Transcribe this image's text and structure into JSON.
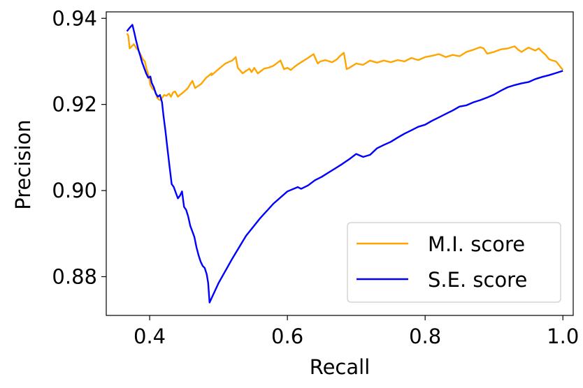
{
  "chart_data": {
    "type": "line",
    "title": "",
    "xlabel": "Recall",
    "ylabel": "Precision",
    "xlim": [
      0.337,
      1.015
    ],
    "ylim": [
      0.871,
      0.9415
    ],
    "x_ticks": [
      0.4,
      0.6,
      0.8,
      1.0
    ],
    "x_tick_labels": [
      "0.4",
      "0.6",
      "0.8",
      "1.0"
    ],
    "y_ticks": [
      0.88,
      0.9,
      0.92,
      0.94
    ],
    "y_tick_labels": [
      "0.88",
      "0.90",
      "0.92",
      "0.94"
    ],
    "grid": false,
    "legend": {
      "position": "bottom-right"
    },
    "series": [
      {
        "name": "M.I. score",
        "color": "#ffa500",
        "x": [
          0.367,
          0.369,
          0.371,
          0.374,
          0.377,
          0.381,
          0.384,
          0.387,
          0.39,
          0.393,
          0.396,
          0.399,
          0.401,
          0.403,
          0.405,
          0.408,
          0.411,
          0.413,
          0.415,
          0.418,
          0.421,
          0.424,
          0.428,
          0.431,
          0.434,
          0.437,
          0.441,
          0.444,
          0.448,
          0.455,
          0.462,
          0.466,
          0.475,
          0.482,
          0.49,
          0.49,
          0.5,
          0.51,
          0.52,
          0.525,
          0.528,
          0.535,
          0.54,
          0.545,
          0.548,
          0.552,
          0.557,
          0.562,
          0.566,
          0.572,
          0.58,
          0.59,
          0.595,
          0.6,
          0.605,
          0.61,
          0.615,
          0.62,
          0.63,
          0.638,
          0.644,
          0.648,
          0.655,
          0.665,
          0.672,
          0.676,
          0.682,
          0.686,
          0.69,
          0.7,
          0.71,
          0.72,
          0.73,
          0.74,
          0.75,
          0.76,
          0.77,
          0.78,
          0.79,
          0.8,
          0.81,
          0.82,
          0.83,
          0.84,
          0.85,
          0.86,
          0.87,
          0.88,
          0.885,
          0.89,
          0.9,
          0.91,
          0.92,
          0.93,
          0.935,
          0.94,
          0.95,
          0.96,
          0.965,
          0.97,
          0.975,
          0.98,
          0.985,
          0.99,
          0.995,
          1.0
        ],
        "y": [
          0.9365,
          0.936,
          0.933,
          0.9335,
          0.934,
          0.933,
          0.9325,
          0.9315,
          0.9305,
          0.93,
          0.928,
          0.9265,
          0.9245,
          0.924,
          0.9235,
          0.9232,
          0.9215,
          0.9212,
          0.921,
          0.9215,
          0.9222,
          0.922,
          0.9225,
          0.9218,
          0.9228,
          0.923,
          0.9218,
          0.9222,
          0.9227,
          0.9237,
          0.9255,
          0.9238,
          0.9248,
          0.9262,
          0.9272,
          0.9268,
          0.9282,
          0.9295,
          0.9302,
          0.931,
          0.9285,
          0.9272,
          0.9278,
          0.9283,
          0.9275,
          0.9285,
          0.9272,
          0.9278,
          0.9283,
          0.9285,
          0.929,
          0.9302,
          0.9282,
          0.9285,
          0.928,
          0.9287,
          0.9293,
          0.9298,
          0.9308,
          0.9317,
          0.9295,
          0.93,
          0.9303,
          0.9298,
          0.9305,
          0.9312,
          0.932,
          0.9282,
          0.9285,
          0.9295,
          0.9292,
          0.9302,
          0.9297,
          0.9302,
          0.9298,
          0.9303,
          0.93,
          0.9308,
          0.9303,
          0.931,
          0.9313,
          0.9317,
          0.931,
          0.9315,
          0.9312,
          0.9322,
          0.9327,
          0.9333,
          0.933,
          0.9318,
          0.9322,
          0.9328,
          0.933,
          0.9335,
          0.9327,
          0.9322,
          0.9332,
          0.9325,
          0.933,
          0.9322,
          0.9315,
          0.9305,
          0.9302,
          0.93,
          0.929,
          0.928
        ]
      },
      {
        "name": "S.E. score",
        "color": "#0000ff",
        "x": [
          0.367,
          0.371,
          0.375,
          0.378,
          0.38,
          0.382,
          0.384,
          0.386,
          0.389,
          0.392,
          0.395,
          0.398,
          0.401,
          0.403,
          0.406,
          0.409,
          0.412,
          0.415,
          0.418,
          0.42,
          0.423,
          0.426,
          0.429,
          0.432,
          0.435,
          0.438,
          0.441,
          0.444,
          0.447,
          0.45,
          0.453,
          0.456,
          0.459,
          0.462,
          0.465,
          0.468,
          0.471,
          0.474,
          0.477,
          0.48,
          0.483,
          0.485,
          0.487,
          0.5,
          0.52,
          0.54,
          0.56,
          0.58,
          0.6,
          0.615,
          0.62,
          0.63,
          0.64,
          0.65,
          0.66,
          0.67,
          0.68,
          0.69,
          0.7,
          0.71,
          0.72,
          0.73,
          0.74,
          0.75,
          0.76,
          0.77,
          0.78,
          0.79,
          0.8,
          0.81,
          0.82,
          0.83,
          0.84,
          0.85,
          0.86,
          0.87,
          0.88,
          0.89,
          0.9,
          0.91,
          0.92,
          0.93,
          0.94,
          0.95,
          0.96,
          0.97,
          0.98,
          0.99,
          1.0
        ],
        "y": [
          0.937,
          0.9378,
          0.9385,
          0.9365,
          0.935,
          0.9338,
          0.9325,
          0.9315,
          0.9298,
          0.9285,
          0.9272,
          0.9262,
          0.9265,
          0.925,
          0.924,
          0.9225,
          0.9218,
          0.9222,
          0.9205,
          0.9175,
          0.9138,
          0.9095,
          0.9055,
          0.9015,
          0.9008,
          0.8995,
          0.8982,
          0.8988,
          0.8998,
          0.8962,
          0.8955,
          0.894,
          0.8918,
          0.8905,
          0.8892,
          0.8868,
          0.885,
          0.8835,
          0.8825,
          0.882,
          0.8805,
          0.8785,
          0.874,
          0.8785,
          0.8842,
          0.8895,
          0.8935,
          0.897,
          0.8998,
          0.9008,
          0.9004,
          0.9012,
          0.9024,
          0.9032,
          0.9042,
          0.9052,
          0.9062,
          0.9073,
          0.9085,
          0.9078,
          0.9083,
          0.9098,
          0.9106,
          0.9113,
          0.9123,
          0.9132,
          0.914,
          0.9148,
          0.9153,
          0.9162,
          0.917,
          0.9178,
          0.9186,
          0.9195,
          0.9198,
          0.9205,
          0.921,
          0.9216,
          0.9223,
          0.9232,
          0.924,
          0.9245,
          0.9249,
          0.9252,
          0.9259,
          0.9264,
          0.9268,
          0.9273,
          0.9278
        ]
      }
    ]
  }
}
